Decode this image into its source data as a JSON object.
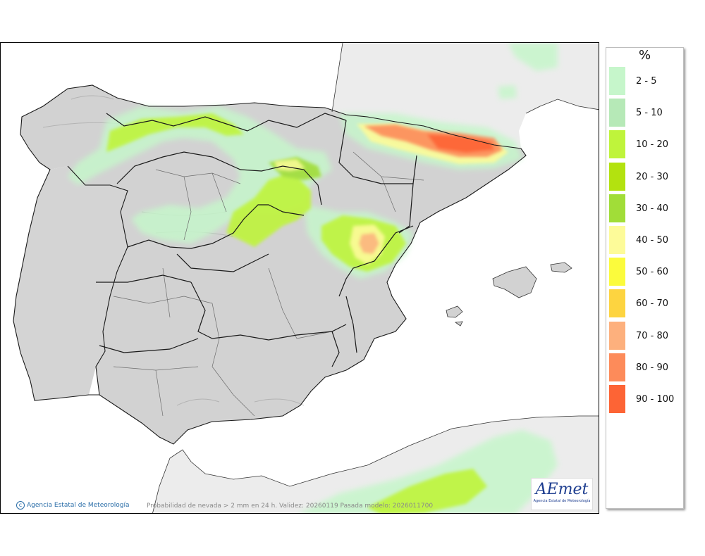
{
  "map": {
    "credit": "Agencia Estatal de Meteorología",
    "caption": "Probabilidad de nevada > 2 mm en 24 h. Validez: 20260119 Pasada modelo: 2026011700",
    "logo_text": "AEmet",
    "logo_subtitle": "Agencia Estatal de Meteorología",
    "colors": {
      "sea": "#ffffff",
      "land": "#d2d2d2",
      "foreign_land": "#ececec",
      "borders": "#1a1a1a"
    }
  },
  "legend": {
    "title": "%",
    "items": [
      {
        "label": "2 - 5",
        "color": "#c6f6cb"
      },
      {
        "label": "5 - 10",
        "color": "#b6e9b7"
      },
      {
        "label": "10 - 20",
        "color": "#bff43b"
      },
      {
        "label": "20 - 30",
        "color": "#b3e20f"
      },
      {
        "label": "30 - 40",
        "color": "#a1dd38"
      },
      {
        "label": "40 - 50",
        "color": "#fdfb99"
      },
      {
        "label": "50 - 60",
        "color": "#fbfb3c"
      },
      {
        "label": "60 - 70",
        "color": "#fdd440"
      },
      {
        "label": "70 - 80",
        "color": "#fdb07d"
      },
      {
        "label": "80 - 90",
        "color": "#fd8b5a"
      },
      {
        "label": "90 - 100",
        "color": "#fd6435"
      }
    ]
  }
}
